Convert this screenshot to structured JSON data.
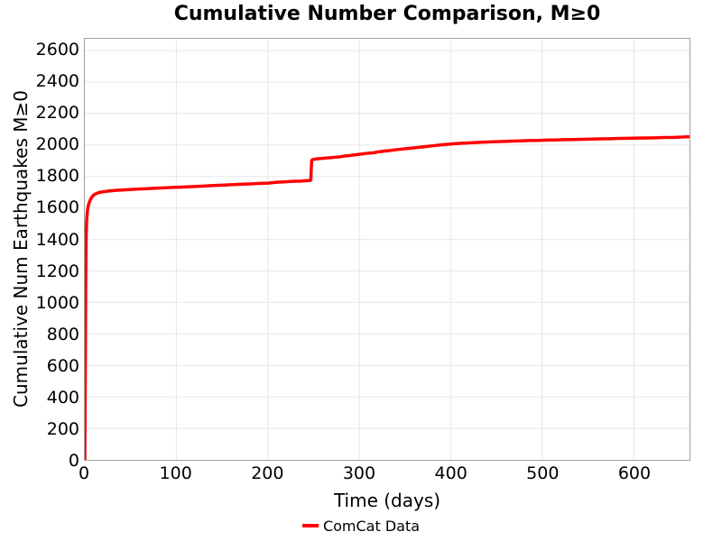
{
  "chart_data": {
    "type": "line",
    "title": "Cumulative Number Comparison, M≥0",
    "xlabel": "Time (days)",
    "ylabel": "Cumulative Num Earthquakes M≥0",
    "xlim": [
      0,
      661
    ],
    "ylim": [
      0,
      2675
    ],
    "x_ticks": [
      0,
      100,
      200,
      300,
      400,
      500,
      600
    ],
    "y_ticks": [
      0,
      200,
      400,
      600,
      800,
      1000,
      1200,
      1400,
      1600,
      1800,
      2000,
      2200,
      2400,
      2600
    ],
    "grid": true,
    "colors": {
      "line": "#ff0000",
      "grid": "#e7e7e7",
      "axis_border": "#9f9f9f",
      "text": "#000000"
    },
    "legend": {
      "position": "bottom-center",
      "entries": [
        {
          "label": "ComCat Data",
          "color": "#ff0000"
        }
      ]
    },
    "series": [
      {
        "name": "ComCat Data",
        "color": "#ff0000",
        "line_width": 3.5,
        "points": [
          [
            0,
            0
          ],
          [
            0.6,
            600
          ],
          [
            1,
            1120
          ],
          [
            1.4,
            1390
          ],
          [
            2,
            1520
          ],
          [
            2.7,
            1575
          ],
          [
            3.5,
            1608
          ],
          [
            4.5,
            1630
          ],
          [
            6,
            1652
          ],
          [
            8,
            1672
          ],
          [
            10,
            1684
          ],
          [
            13,
            1693
          ],
          [
            16,
            1699
          ],
          [
            20,
            1703
          ],
          [
            25,
            1707
          ],
          [
            30,
            1710
          ],
          [
            36,
            1713
          ],
          [
            43,
            1715
          ],
          [
            50,
            1718
          ],
          [
            58,
            1720
          ],
          [
            66,
            1722
          ],
          [
            74,
            1725
          ],
          [
            82,
            1727
          ],
          [
            90,
            1729
          ],
          [
            98,
            1731
          ],
          [
            106,
            1733
          ],
          [
            114,
            1735
          ],
          [
            122,
            1737
          ],
          [
            130,
            1739
          ],
          [
            138,
            1742
          ],
          [
            146,
            1744
          ],
          [
            153,
            1746
          ],
          [
            160,
            1748
          ],
          [
            168,
            1750
          ],
          [
            176,
            1752
          ],
          [
            184,
            1754
          ],
          [
            192,
            1756
          ],
          [
            200,
            1758
          ],
          [
            206,
            1761
          ],
          [
            212,
            1764
          ],
          [
            218,
            1766
          ],
          [
            224,
            1768
          ],
          [
            230,
            1770
          ],
          [
            236,
            1771
          ],
          [
            242,
            1773
          ],
          [
            246,
            1775
          ],
          [
            247,
            1776
          ],
          [
            248,
            1903
          ],
          [
            250,
            1909
          ],
          [
            253,
            1912
          ],
          [
            257,
            1914
          ],
          [
            261,
            1916
          ],
          [
            265,
            1918
          ],
          [
            269,
            1920
          ],
          [
            273,
            1922
          ],
          [
            277,
            1924
          ],
          [
            281,
            1927
          ],
          [
            284,
            1930
          ],
          [
            288,
            1932
          ],
          [
            292,
            1935
          ],
          [
            296,
            1938
          ],
          [
            300,
            1941
          ],
          [
            304,
            1944
          ],
          [
            308,
            1947
          ],
          [
            312,
            1949
          ],
          [
            316,
            1951
          ],
          [
            320,
            1956
          ],
          [
            324,
            1959
          ],
          [
            328,
            1962
          ],
          [
            332,
            1964
          ],
          [
            336,
            1967
          ],
          [
            340,
            1970
          ],
          [
            348,
            1975
          ],
          [
            356,
            1980
          ],
          [
            364,
            1985
          ],
          [
            372,
            1990
          ],
          [
            380,
            1995
          ],
          [
            388,
            2000
          ],
          [
            396,
            2004
          ],
          [
            404,
            2008
          ],
          [
            414,
            2012
          ],
          [
            424,
            2015
          ],
          [
            434,
            2018
          ],
          [
            444,
            2020
          ],
          [
            454,
            2022
          ],
          [
            464,
            2024
          ],
          [
            474,
            2026
          ],
          [
            484,
            2028
          ],
          [
            494,
            2029
          ],
          [
            504,
            2031
          ],
          [
            514,
            2032
          ],
          [
            524,
            2034
          ],
          [
            534,
            2035
          ],
          [
            544,
            2036
          ],
          [
            554,
            2038
          ],
          [
            564,
            2039
          ],
          [
            574,
            2040
          ],
          [
            584,
            2042
          ],
          [
            594,
            2043
          ],
          [
            604,
            2044
          ],
          [
            614,
            2045
          ],
          [
            624,
            2046
          ],
          [
            634,
            2048
          ],
          [
            644,
            2049
          ],
          [
            654,
            2051
          ],
          [
            661,
            2053
          ]
        ]
      }
    ]
  }
}
